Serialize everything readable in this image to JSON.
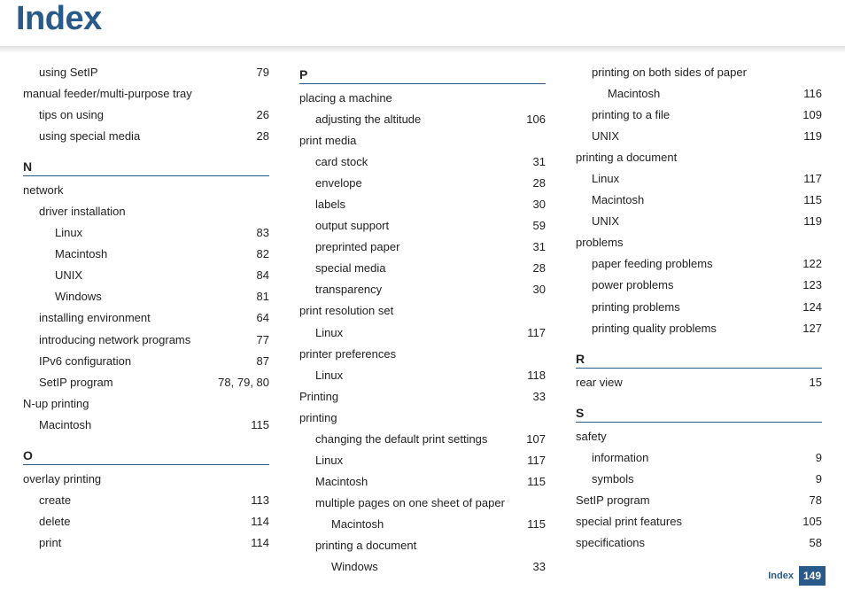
{
  "title": "Index",
  "footer": {
    "label": "Index",
    "page": "149"
  },
  "columns": [
    {
      "blocks": [
        {
          "type": "entries",
          "items": [
            {
              "level": 1,
              "label": "using SetIP",
              "page": "79"
            },
            {
              "level": 0,
              "label": "manual feeder/multi-purpose tray",
              "page": ""
            },
            {
              "level": 1,
              "label": "tips on using",
              "page": "26"
            },
            {
              "level": 1,
              "label": "using special media",
              "page": "28"
            }
          ]
        },
        {
          "type": "letter",
          "letter": "N"
        },
        {
          "type": "entries",
          "items": [
            {
              "level": 0,
              "label": "network",
              "page": ""
            },
            {
              "level": 1,
              "label": "driver installation",
              "page": ""
            },
            {
              "level": 2,
              "label": "Linux",
              "page": "83"
            },
            {
              "level": 2,
              "label": "Macintosh",
              "page": "82"
            },
            {
              "level": 2,
              "label": "UNIX",
              "page": "84"
            },
            {
              "level": 2,
              "label": "Windows",
              "page": "81"
            },
            {
              "level": 1,
              "label": "installing environment",
              "page": "64"
            },
            {
              "level": 1,
              "label": "introducing network programs",
              "page": "77"
            },
            {
              "level": 1,
              "label": "IPv6 configuration",
              "page": "87"
            },
            {
              "level": 1,
              "label": "SetIP program",
              "page": "78, 79, 80"
            },
            {
              "level": 0,
              "label": "N-up printing",
              "page": ""
            },
            {
              "level": 1,
              "label": "Macintosh",
              "page": "115"
            }
          ]
        },
        {
          "type": "letter",
          "letter": "O"
        },
        {
          "type": "entries",
          "items": [
            {
              "level": 0,
              "label": "overlay printing",
              "page": ""
            },
            {
              "level": 1,
              "label": "create",
              "page": "113"
            },
            {
              "level": 1,
              "label": "delete",
              "page": "114"
            },
            {
              "level": 1,
              "label": "print",
              "page": "114"
            }
          ]
        }
      ]
    },
    {
      "blocks": [
        {
          "type": "letter",
          "letter": "P",
          "first": true
        },
        {
          "type": "entries",
          "items": [
            {
              "level": 0,
              "label": "placing a machine",
              "page": ""
            },
            {
              "level": 1,
              "label": "adjusting the altitude",
              "page": "106"
            },
            {
              "level": 0,
              "label": "print media",
              "page": ""
            },
            {
              "level": 1,
              "label": "card stock",
              "page": "31"
            },
            {
              "level": 1,
              "label": "envelope",
              "page": "28"
            },
            {
              "level": 1,
              "label": "labels",
              "page": "30"
            },
            {
              "level": 1,
              "label": "output support",
              "page": "59"
            },
            {
              "level": 1,
              "label": "preprinted paper",
              "page": "31"
            },
            {
              "level": 1,
              "label": "special media",
              "page": "28"
            },
            {
              "level": 1,
              "label": "transparency",
              "page": "30"
            },
            {
              "level": 0,
              "label": "print resolution set",
              "page": ""
            },
            {
              "level": 1,
              "label": "Linux",
              "page": "117"
            },
            {
              "level": 0,
              "label": "printer preferences",
              "page": ""
            },
            {
              "level": 1,
              "label": "Linux",
              "page": "118"
            },
            {
              "level": 0,
              "label": "Printing",
              "page": "33"
            },
            {
              "level": 0,
              "label": "printing",
              "page": ""
            },
            {
              "level": 1,
              "label": "changing the default print settings",
              "page": "107"
            },
            {
              "level": 1,
              "label": "Linux",
              "page": "117"
            },
            {
              "level": 1,
              "label": "Macintosh",
              "page": "115"
            },
            {
              "level": 1,
              "label": "multiple pages on one sheet of paper",
              "page": ""
            },
            {
              "level": 2,
              "label": "Macintosh",
              "page": "115"
            },
            {
              "level": 1,
              "label": "printing a document",
              "page": ""
            },
            {
              "level": 2,
              "label": "Windows",
              "page": "33"
            }
          ]
        }
      ]
    },
    {
      "blocks": [
        {
          "type": "entries",
          "items": [
            {
              "level": 1,
              "label": "printing on both sides of paper",
              "page": ""
            },
            {
              "level": 2,
              "label": "Macintosh",
              "page": "116"
            },
            {
              "level": 1,
              "label": "printing to a file",
              "page": "109"
            },
            {
              "level": 1,
              "label": "UNIX",
              "page": "119"
            },
            {
              "level": 0,
              "label": "printing a document",
              "page": ""
            },
            {
              "level": 1,
              "label": "Linux",
              "page": "117"
            },
            {
              "level": 1,
              "label": "Macintosh",
              "page": "115"
            },
            {
              "level": 1,
              "label": "UNIX",
              "page": "119"
            },
            {
              "level": 0,
              "label": "problems",
              "page": ""
            },
            {
              "level": 1,
              "label": "paper feeding problems",
              "page": "122"
            },
            {
              "level": 1,
              "label": "power problems",
              "page": "123"
            },
            {
              "level": 1,
              "label": "printing problems",
              "page": "124"
            },
            {
              "level": 1,
              "label": "printing quality problems",
              "page": "127"
            }
          ]
        },
        {
          "type": "letter",
          "letter": "R"
        },
        {
          "type": "entries",
          "items": [
            {
              "level": 0,
              "label": "rear view",
              "page": "15"
            }
          ]
        },
        {
          "type": "letter",
          "letter": "S"
        },
        {
          "type": "entries",
          "items": [
            {
              "level": 0,
              "label": "safety",
              "page": ""
            },
            {
              "level": 1,
              "label": "information",
              "page": "9"
            },
            {
              "level": 1,
              "label": "symbols",
              "page": "9"
            },
            {
              "level": 0,
              "label": "SetIP program",
              "page": "78"
            },
            {
              "level": 0,
              "label": "special print features",
              "page": "105"
            },
            {
              "level": 0,
              "label": "specifications",
              "page": "58"
            }
          ]
        }
      ]
    }
  ]
}
